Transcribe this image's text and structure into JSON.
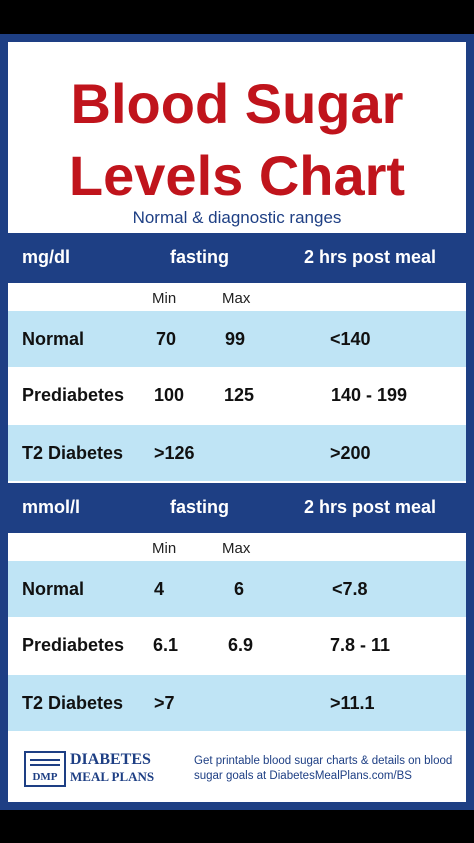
{
  "title_line1": "Blood Sugar",
  "title_line2": "Levels Chart",
  "subtitle": "Normal & diagnostic ranges",
  "colors": {
    "brand_blue": "#1e3f84",
    "title_red": "#c0141c",
    "row_blue": "#bfe4f5"
  },
  "sections": [
    {
      "unit": "mg/dl",
      "fasting": "fasting",
      "post_meal": "2 hrs post meal",
      "min": "Min",
      "max": "Max",
      "rows": [
        {
          "label": "Normal",
          "min": "70",
          "max": "99",
          "post": "<140"
        },
        {
          "label": "Prediabetes",
          "min": "100",
          "max": "125",
          "post": "140 - 199"
        },
        {
          "label": "T2 Diabetes",
          "min": ">126",
          "max": "",
          "post": ">200"
        }
      ]
    },
    {
      "unit": "mmol/l",
      "fasting": "fasting",
      "post_meal": "2 hrs post meal",
      "min": "Min",
      "max": "Max",
      "rows": [
        {
          "label": "Normal",
          "min": "4",
          "max": "6",
          "post": "<7.8"
        },
        {
          "label": "Prediabetes",
          "min": "6.1",
          "max": "6.9",
          "post": "7.8 - 11"
        },
        {
          "label": "T2 Diabetes",
          "min": ">7",
          "max": "",
          "post": ">11.1"
        }
      ]
    }
  ],
  "footer": {
    "logo_abbr": "DMP",
    "brand_line1": "DIABETES",
    "brand_line2": "MEAL PLANS",
    "text": "Get printable blood sugar charts & details on blood sugar goals at DiabetesMealPlans.com/BS"
  }
}
